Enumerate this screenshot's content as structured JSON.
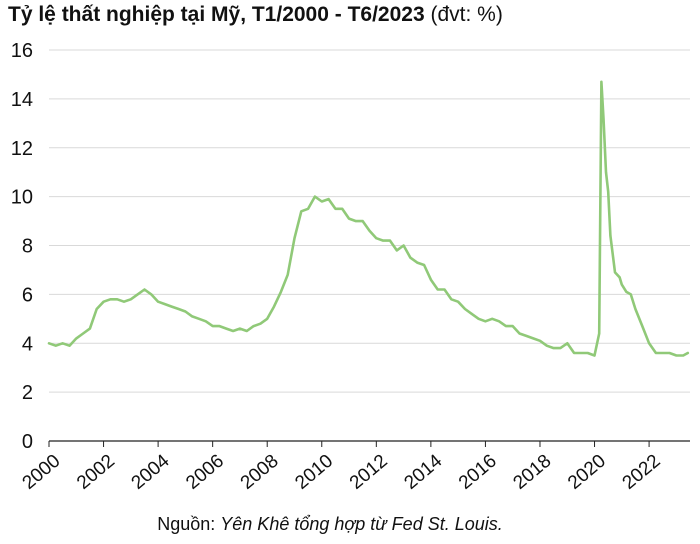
{
  "title_bold": "Tỷ lệ thất nghiệp tại Mỹ, T1/2000 - T6/2023",
  "title_unit": " (đvt: %)",
  "source_prefix": "Nguồn: ",
  "source_text": "Yên Khê tổng hợp từ Fed St. Louis.",
  "colors": {
    "line": "#90c978",
    "grid": "#d9d9d9",
    "axis": "#222222"
  },
  "chart_data": {
    "type": "line",
    "title": "Tỷ lệ thất nghiệp tại Mỹ, T1/2000 - T6/2023",
    "xlabel": "",
    "ylabel": "",
    "ylim": [
      0,
      16
    ],
    "xlim": [
      2000,
      2023.5
    ],
    "y_ticks": [
      "0",
      "2",
      "4",
      "6",
      "8",
      "10",
      "12",
      "14",
      "16"
    ],
    "x_ticks": [
      "2000",
      "2002",
      "2004",
      "2006",
      "2008",
      "2010",
      "2012",
      "2014",
      "2016",
      "2018",
      "2020",
      "2022"
    ],
    "grid": true,
    "x": [
      2000.0,
      2000.25,
      2000.5,
      2000.75,
      2001.0,
      2001.25,
      2001.5,
      2001.75,
      2002.0,
      2002.25,
      2002.5,
      2002.75,
      2003.0,
      2003.25,
      2003.5,
      2003.75,
      2004.0,
      2004.25,
      2004.5,
      2004.75,
      2005.0,
      2005.25,
      2005.5,
      2005.75,
      2006.0,
      2006.25,
      2006.5,
      2006.75,
      2007.0,
      2007.25,
      2007.5,
      2007.75,
      2008.0,
      2008.25,
      2008.5,
      2008.75,
      2009.0,
      2009.25,
      2009.5,
      2009.75,
      2010.0,
      2010.25,
      2010.5,
      2010.75,
      2011.0,
      2011.25,
      2011.5,
      2011.75,
      2012.0,
      2012.25,
      2012.5,
      2012.75,
      2013.0,
      2013.25,
      2013.5,
      2013.75,
      2014.0,
      2014.25,
      2014.5,
      2014.75,
      2015.0,
      2015.25,
      2015.5,
      2015.75,
      2016.0,
      2016.25,
      2016.5,
      2016.75,
      2017.0,
      2017.25,
      2017.5,
      2017.75,
      2018.0,
      2018.25,
      2018.5,
      2018.75,
      2019.0,
      2019.25,
      2019.5,
      2019.75,
      2020.0,
      2020.17,
      2020.25,
      2020.33,
      2020.42,
      2020.5,
      2020.58,
      2020.75,
      2020.92,
      2021.0,
      2021.17,
      2021.33,
      2021.5,
      2021.75,
      2022.0,
      2022.25,
      2022.5,
      2022.75,
      2023.0,
      2023.25,
      2023.42
    ],
    "y": [
      4.0,
      3.9,
      4.0,
      3.9,
      4.2,
      4.4,
      4.6,
      5.4,
      5.7,
      5.8,
      5.8,
      5.7,
      5.8,
      6.0,
      6.2,
      6.0,
      5.7,
      5.6,
      5.5,
      5.4,
      5.3,
      5.1,
      5.0,
      4.9,
      4.7,
      4.7,
      4.6,
      4.5,
      4.6,
      4.5,
      4.7,
      4.8,
      5.0,
      5.5,
      6.1,
      6.8,
      8.3,
      9.4,
      9.5,
      10.0,
      9.8,
      9.9,
      9.5,
      9.5,
      9.1,
      9.0,
      9.0,
      8.6,
      8.3,
      8.2,
      8.2,
      7.8,
      8.0,
      7.5,
      7.3,
      7.2,
      6.6,
      6.2,
      6.2,
      5.8,
      5.7,
      5.4,
      5.2,
      5.0,
      4.9,
      5.0,
      4.9,
      4.7,
      4.7,
      4.4,
      4.3,
      4.2,
      4.1,
      3.9,
      3.8,
      3.8,
      4.0,
      3.6,
      3.6,
      3.6,
      3.5,
      4.4,
      14.7,
      13.2,
      11.0,
      10.2,
      8.4,
      6.9,
      6.7,
      6.4,
      6.1,
      6.0,
      5.4,
      4.7,
      4.0,
      3.6,
      3.6,
      3.6,
      3.5,
      3.5,
      3.6
    ]
  }
}
